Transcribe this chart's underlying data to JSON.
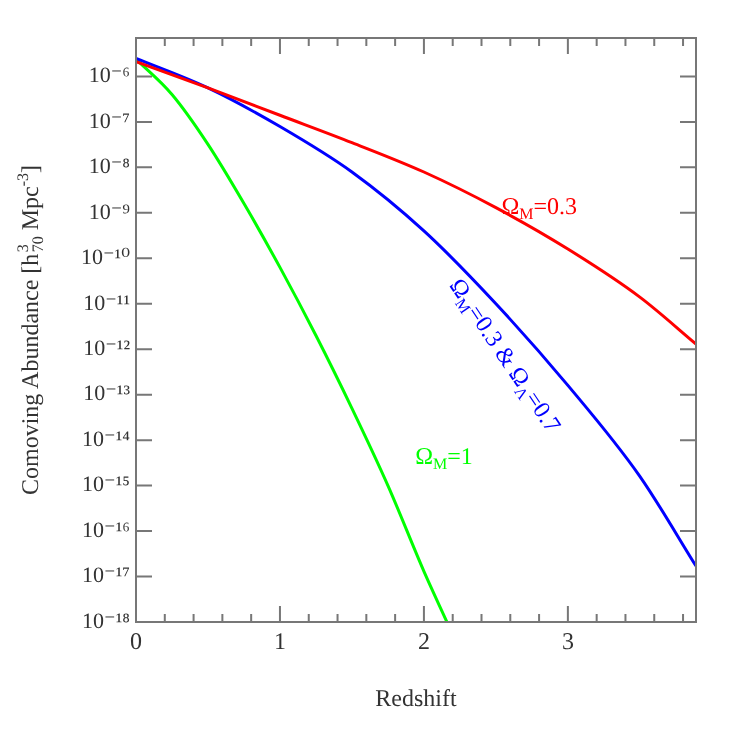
{
  "chart_data": {
    "type": "line",
    "xlabel": "Redshift",
    "ylabel": "Comoving Abundance [h$^{3}$$_{70}$ Mpc$^{-3}$]",
    "log": "y",
    "grid": false,
    "legend": false,
    "marker": "none",
    "line_style": "solid",
    "xlim": [
      0,
      3.89
    ],
    "xticks": [
      0,
      1,
      2,
      3
    ],
    "ylim": [
      1e-18,
      7e-06
    ],
    "yticks": [
      {
        "value": 1e-06,
        "label": "10⁻⁶"
      },
      {
        "value": 1e-07,
        "label": "10⁻⁷"
      },
      {
        "value": 1e-08,
        "label": "10⁻⁸"
      },
      {
        "value": 1e-09,
        "label": "10⁻⁹"
      },
      {
        "value": 1e-10,
        "label": "10⁻¹⁰"
      },
      {
        "value": 1e-11,
        "label": "10⁻¹¹"
      },
      {
        "value": 1e-12,
        "label": "10⁻¹²"
      },
      {
        "value": 1e-13,
        "label": "10⁻¹³"
      },
      {
        "value": 1e-14,
        "label": "10⁻¹⁴"
      },
      {
        "value": 1e-15,
        "label": "10⁻¹⁵"
      },
      {
        "value": 1e-16,
        "label": "10⁻¹⁶"
      },
      {
        "value": 1e-17,
        "label": "10⁻¹⁷"
      },
      {
        "value": 1e-18,
        "label": "10⁻¹⁸"
      }
    ],
    "series": [
      {
        "color": "#ff0000",
        "x": [
          0,
          0.5,
          1,
          1.5,
          2,
          2.5,
          3,
          3.5,
          3.89
        ],
        "values": [
          2.1e-06,
          5.6e-07,
          1.4e-07,
          3.5e-08,
          7.9e-09,
          1.3e-09,
          1.6e-10,
          1.4e-11,
          1.3e-12
        ]
      },
      {
        "color": "#0000ff",
        "x": [
          0,
          0.5,
          1,
          1.5,
          2,
          2.5,
          3,
          3.5,
          3.89
        ],
        "values": [
          2.5e-06,
          5.6e-07,
          7.9e-08,
          7.9e-09,
          4e-10,
          1e-11,
          1.6e-13,
          1.6e-15,
          1.7e-17
        ]
      },
      {
        "color": "#00ff00",
        "x": [
          0,
          0.25,
          0.5,
          0.75,
          1,
          1.25,
          1.5,
          1.75,
          2,
          2.16
        ],
        "values": [
          2.4e-06,
          4e-07,
          3.2e-08,
          1.6e-09,
          6.3e-11,
          2e-12,
          5e-14,
          1e-15,
          1.3e-17,
          1e-18
        ]
      }
    ],
    "annotations": [
      "Ω$_{M}$=0.3",
      "Ω$_{M}$=0.3 & Ω$_{Λ}$=0.7",
      "Ω$_{M}$=1"
    ]
  }
}
